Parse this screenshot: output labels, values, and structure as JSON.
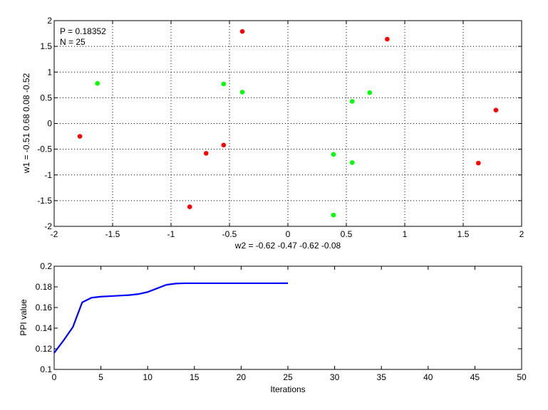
{
  "chart_data": [
    {
      "type": "scatter",
      "xlabel": "w2 = -0.62  -0.47  -0.62  -0.08",
      "ylabel": "w1 = -0.51  0.68  0.08  -0.52",
      "xlim": [
        -2,
        2
      ],
      "ylim": [
        -2,
        2
      ],
      "xticks": [
        -2,
        -1.5,
        -1,
        -0.5,
        0,
        0.5,
        1,
        1.5,
        2
      ],
      "yticks": [
        -2,
        -1.5,
        -1,
        -0.5,
        0,
        0.5,
        1,
        1.5,
        2
      ],
      "xtick_labels": [
        "-2",
        "-1.5",
        "-1",
        "-0.5",
        "0",
        "0.5",
        "1",
        "1.5",
        "2"
      ],
      "ytick_labels": [
        "-2",
        "-1.5",
        "-1",
        "-0.5",
        "0",
        "0.5",
        "1",
        "1.5",
        "2"
      ],
      "grid": true,
      "annotations": [
        "P = 0.18352",
        "N = 25"
      ],
      "series": [
        {
          "color": "#ff0000",
          "points": [
            [
              -1.78,
              -0.25
            ],
            [
              -0.7,
              -0.58
            ],
            [
              -0.55,
              -0.42
            ],
            [
              -0.84,
              -1.62
            ],
            [
              -0.39,
              1.79
            ],
            [
              0.85,
              1.64
            ],
            [
              1.78,
              0.26
            ],
            [
              1.63,
              -0.77
            ]
          ]
        },
        {
          "color": "#00ff00",
          "points": [
            [
              -1.63,
              0.78
            ],
            [
              -0.55,
              0.77
            ],
            [
              -0.39,
              0.61
            ],
            [
              0.55,
              0.43
            ],
            [
              0.7,
              0.6
            ],
            [
              0.39,
              -0.6
            ],
            [
              0.55,
              -0.76
            ],
            [
              0.39,
              -1.78
            ]
          ]
        }
      ]
    },
    {
      "type": "line",
      "xlabel": "Iterations",
      "ylabel": "PPI value",
      "xlim": [
        0,
        50
      ],
      "ylim": [
        0.1,
        0.2
      ],
      "xticks": [
        0,
        5,
        10,
        15,
        20,
        25,
        30,
        35,
        40,
        45,
        50
      ],
      "yticks": [
        0.1,
        0.12,
        0.14,
        0.16,
        0.18,
        0.2
      ],
      "xtick_labels": [
        "0",
        "5",
        "10",
        "15",
        "20",
        "25",
        "30",
        "35",
        "40",
        "45",
        "50"
      ],
      "ytick_labels": [
        "0.1",
        "0.12",
        "0.14",
        "0.16",
        "0.18",
        "0.2"
      ],
      "grid": false,
      "series": [
        {
          "color": "#0000ff",
          "x": [
            0,
            1,
            2,
            3,
            4,
            5,
            6,
            7,
            8,
            9,
            10,
            11,
            12,
            13,
            14,
            15,
            16,
            17,
            18,
            19,
            20,
            21,
            22,
            23,
            24,
            25
          ],
          "y": [
            0.116,
            0.128,
            0.141,
            0.165,
            0.1695,
            0.1705,
            0.171,
            0.1715,
            0.172,
            0.173,
            0.175,
            0.1785,
            0.182,
            0.1832,
            0.1835,
            0.1835,
            0.1835,
            0.1835,
            0.1835,
            0.1835,
            0.1835,
            0.1835,
            0.1835,
            0.1835,
            0.1835,
            0.18352
          ]
        }
      ]
    }
  ]
}
